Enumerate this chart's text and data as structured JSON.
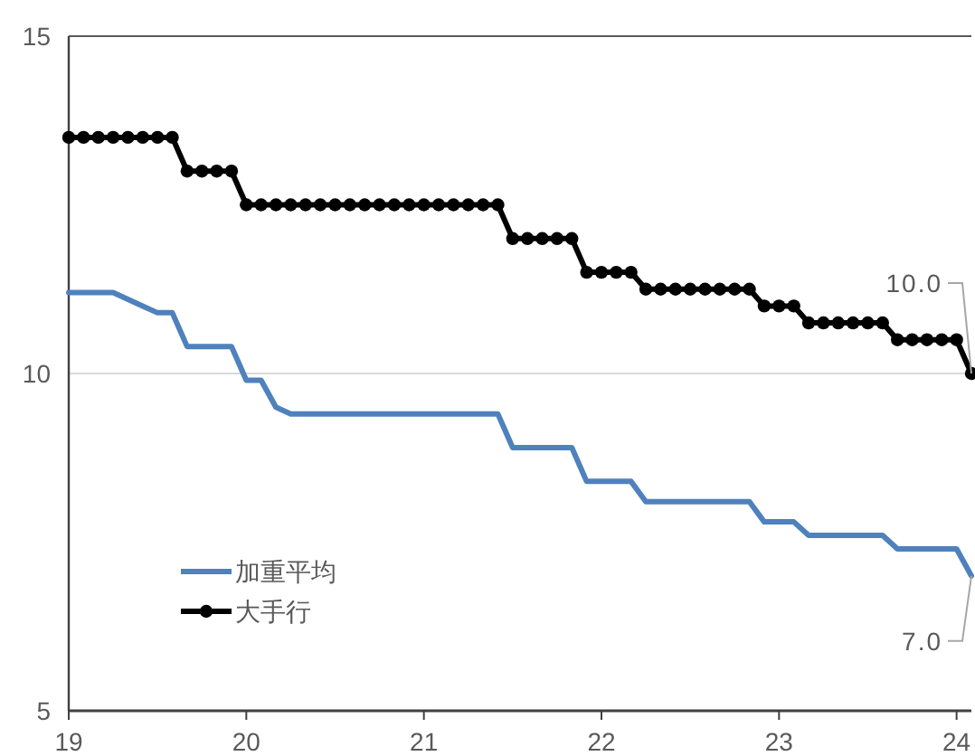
{
  "chart_data": {
    "type": "line",
    "x": [
      "2019-01",
      "2019-02",
      "2019-03",
      "2019-04",
      "2019-05",
      "2019-06",
      "2019-07",
      "2019-08",
      "2019-09",
      "2019-10",
      "2019-11",
      "2019-12",
      "2020-01",
      "2020-02",
      "2020-03",
      "2020-04",
      "2020-05",
      "2020-06",
      "2020-07",
      "2020-08",
      "2020-09",
      "2020-10",
      "2020-11",
      "2020-12",
      "2021-01",
      "2021-02",
      "2021-03",
      "2021-04",
      "2021-05",
      "2021-06",
      "2021-07",
      "2021-08",
      "2021-09",
      "2021-10",
      "2021-11",
      "2021-12",
      "2022-01",
      "2022-02",
      "2022-03",
      "2022-04",
      "2022-05",
      "2022-06",
      "2022-07",
      "2022-08",
      "2022-09",
      "2022-10",
      "2022-11",
      "2022-12",
      "2023-01",
      "2023-02",
      "2023-03",
      "2023-04",
      "2023-05",
      "2023-06",
      "2023-07",
      "2023-08",
      "2023-09",
      "2023-10",
      "2023-11",
      "2023-12",
      "2024-01",
      "2024-02"
    ],
    "series": [
      {
        "name": "加重平均",
        "color": "#4f81bd",
        "marker": "none",
        "values": [
          11.2,
          11.2,
          11.2,
          11.2,
          11.1,
          11.0,
          10.9,
          10.9,
          10.4,
          10.4,
          10.4,
          10.4,
          9.9,
          9.9,
          9.5,
          9.4,
          9.4,
          9.4,
          9.4,
          9.4,
          9.4,
          9.4,
          9.4,
          9.4,
          9.4,
          9.4,
          9.4,
          9.4,
          9.4,
          9.4,
          8.9,
          8.9,
          8.9,
          8.9,
          8.9,
          8.4,
          8.4,
          8.4,
          8.4,
          8.1,
          8.1,
          8.1,
          8.1,
          8.1,
          8.1,
          8.1,
          8.1,
          7.8,
          7.8,
          7.8,
          7.6,
          7.6,
          7.6,
          7.6,
          7.6,
          7.6,
          7.4,
          7.4,
          7.4,
          7.4,
          7.4,
          7.0
        ]
      },
      {
        "name": "大手行",
        "color": "#000000",
        "marker": "circle",
        "values": [
          13.5,
          13.5,
          13.5,
          13.5,
          13.5,
          13.5,
          13.5,
          13.5,
          13.0,
          13.0,
          13.0,
          13.0,
          12.5,
          12.5,
          12.5,
          12.5,
          12.5,
          12.5,
          12.5,
          12.5,
          12.5,
          12.5,
          12.5,
          12.5,
          12.5,
          12.5,
          12.5,
          12.5,
          12.5,
          12.5,
          12.0,
          12.0,
          12.0,
          12.0,
          12.0,
          11.5,
          11.5,
          11.5,
          11.5,
          11.25,
          11.25,
          11.25,
          11.25,
          11.25,
          11.25,
          11.25,
          11.25,
          11.0,
          11.0,
          11.0,
          10.75,
          10.75,
          10.75,
          10.75,
          10.75,
          10.75,
          10.5,
          10.5,
          10.5,
          10.5,
          10.5,
          10.0
        ]
      }
    ],
    "xlim": [
      "2019-01",
      "2024-02"
    ],
    "xticks": [
      {
        "value": "2019-01",
        "label": "19"
      },
      {
        "value": "2020-01",
        "label": "20"
      },
      {
        "value": "2021-01",
        "label": "21"
      },
      {
        "value": "2022-01",
        "label": "22"
      },
      {
        "value": "2023-01",
        "label": "23"
      },
      {
        "value": "2024-01",
        "label": "24"
      }
    ],
    "ylim": [
      5,
      15
    ],
    "yticks": [
      5,
      10,
      15
    ],
    "grid": "y",
    "legend": "left",
    "line_style": "solid",
    "annotations": [
      {
        "text": "10.0",
        "x": "2024-02",
        "y": 10
      },
      {
        "text": "7.0",
        "x": "2024-02",
        "y": 7
      }
    ]
  }
}
